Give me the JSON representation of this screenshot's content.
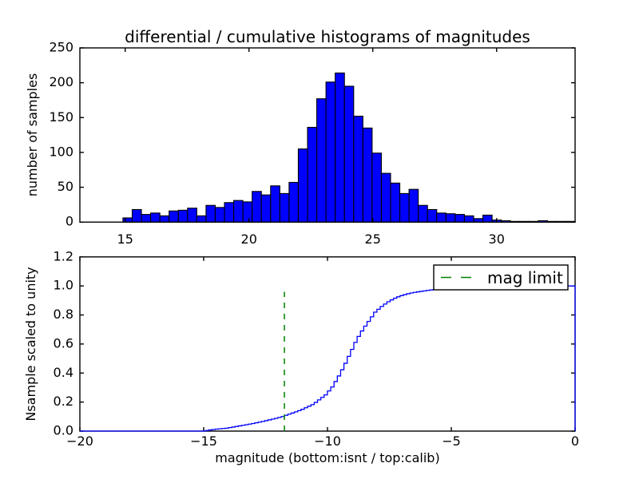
{
  "figure": {
    "title": "differential / cumulative histograms of magnitudes",
    "background_color": "#ffffff"
  },
  "colors": {
    "hist_fill": "#0000ff",
    "hist_edge": "#000000",
    "cumulative_line": "#0000ff",
    "mag_limit_line": "#008000",
    "axes_edge": "#000000",
    "text": "#000000",
    "legend_background": "#ffffff"
  },
  "chart_data": [
    {
      "type": "bar",
      "role": "differential-histogram",
      "title": "differential / cumulative histograms of magnitudes",
      "ylabel": "number of samples",
      "xlim": [
        13.17,
        33.17
      ],
      "ylim": [
        0,
        250
      ],
      "grid": false,
      "xticks": {
        "values": [
          15,
          20,
          25,
          30
        ],
        "labels": [
          "15",
          "20",
          "25",
          "30"
        ]
      },
      "yticks": {
        "values": [
          0,
          50,
          100,
          150,
          200,
          250
        ],
        "labels": [
          "0",
          "50",
          "100",
          "150",
          "200",
          "250"
        ]
      },
      "bars": {
        "bin_start": 14.91,
        "bin_width": 0.3727,
        "counts": [
          6,
          18,
          11,
          13,
          9,
          16,
          17,
          20,
          9,
          24,
          21,
          28,
          31,
          29,
          44,
          39,
          52,
          41,
          57,
          105,
          136,
          177,
          201,
          214,
          195,
          152,
          135,
          99,
          70,
          56,
          41,
          47,
          24,
          18,
          13,
          12,
          11,
          9,
          5,
          10,
          3,
          2,
          1,
          1,
          1,
          2,
          1,
          1,
          1
        ]
      }
    },
    {
      "type": "line",
      "role": "cumulative-histogram",
      "ylabel": "Nsample scaled to unity",
      "xlabel": "magnitude (bottom:isnt / top:calib)",
      "xlim": [
        -20,
        0
      ],
      "ylim": [
        0,
        1.2
      ],
      "grid": false,
      "xticks": {
        "values": [
          -20,
          -15,
          -10,
          -5,
          0
        ],
        "labels": [
          "−20",
          "−15",
          "−10",
          "−5",
          "0"
        ]
      },
      "yticks": {
        "values": [
          0,
          0.2,
          0.4,
          0.6,
          0.8,
          1.0,
          1.2
        ],
        "labels": [
          "0.0",
          "0.2",
          "0.4",
          "0.6",
          "0.8",
          "1.0",
          "1.2"
        ]
      },
      "step_width": 0.1333,
      "curve_points": [
        [
          -20,
          0
        ],
        [
          -14.9,
          0
        ],
        [
          -14.75,
          0.006
        ],
        [
          -14.5,
          0.012
        ],
        [
          -14,
          0.02
        ],
        [
          -13.5,
          0.035
        ],
        [
          -13,
          0.05
        ],
        [
          -12.5,
          0.068
        ],
        [
          -12,
          0.088
        ],
        [
          -11.74,
          0.1
        ],
        [
          -11.5,
          0.115
        ],
        [
          -11,
          0.145
        ],
        [
          -10.5,
          0.185
        ],
        [
          -10,
          0.25
        ],
        [
          -9.75,
          0.3
        ],
        [
          -9.5,
          0.37
        ],
        [
          -9.25,
          0.45
        ],
        [
          -9,
          0.54
        ],
        [
          -8.75,
          0.63
        ],
        [
          -8.5,
          0.7
        ],
        [
          -8.25,
          0.76
        ],
        [
          -8,
          0.82
        ],
        [
          -7.75,
          0.857
        ],
        [
          -7.5,
          0.888
        ],
        [
          -7.25,
          0.912
        ],
        [
          -7,
          0.93
        ],
        [
          -6.75,
          0.943
        ],
        [
          -6.5,
          0.953
        ],
        [
          -6.25,
          0.96
        ],
        [
          -6,
          0.966
        ],
        [
          -5.75,
          0.972
        ],
        [
          -5.5,
          0.977
        ],
        [
          -5,
          0.984
        ],
        [
          -4.5,
          0.989
        ],
        [
          -4,
          0.992
        ],
        [
          -3.5,
          0.994
        ],
        [
          -3,
          0.996
        ],
        [
          -2.5,
          0.997
        ],
        [
          -2,
          0.998
        ],
        [
          -1.5,
          0.9985
        ],
        [
          -1,
          0.999
        ],
        [
          -0.5,
          0.9995
        ],
        [
          0,
          1.0
        ]
      ],
      "mag_limit": {
        "x": -11.74,
        "ymax_value": 0.96,
        "linestyle": "dashed"
      },
      "legend": {
        "label": "mag limit",
        "location": "upper right"
      }
    }
  ]
}
